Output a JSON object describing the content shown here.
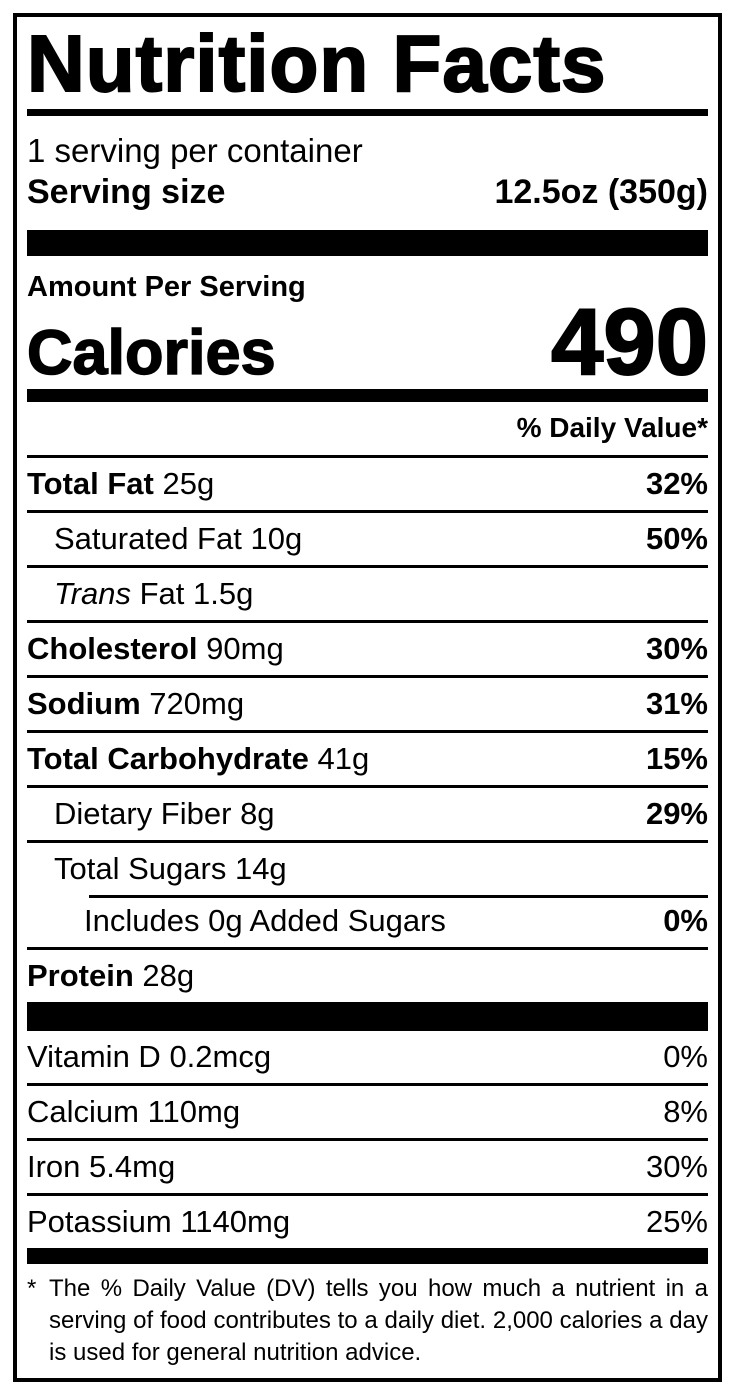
{
  "nutrition": {
    "title": "Nutrition Facts",
    "servings_per_container": "1 serving per container",
    "serving_size": {
      "label": "Serving size",
      "value": "12.5oz (350g)"
    },
    "amount_per_serving": "Amount Per Serving",
    "calories": {
      "label": "Calories",
      "value": "490"
    },
    "daily_value_header": "% Daily Value*",
    "nutrients": [
      {
        "name": "Total Fat",
        "amount": "25g",
        "dv": "32%"
      },
      {
        "name": "Saturated Fat",
        "amount": "10g",
        "dv": "50%"
      },
      {
        "name": "Trans",
        "amount": "Fat 1.5g",
        "dv": ""
      },
      {
        "name": "Cholesterol",
        "amount": "90mg",
        "dv": "30%"
      },
      {
        "name": "Sodium",
        "amount": "720mg",
        "dv": "31%"
      },
      {
        "name": "Total Carbohydrate",
        "amount": "41g",
        "dv": "15%"
      },
      {
        "name": "Dietary Fiber",
        "amount": "8g",
        "dv": "29%"
      },
      {
        "name": "Total Sugars",
        "amount": "14g",
        "dv": ""
      },
      {
        "name": "Includes 0g Added Sugars",
        "amount": "",
        "dv": "0%"
      },
      {
        "name": "Protein",
        "amount": "28g",
        "dv": ""
      }
    ],
    "vitamins": [
      {
        "name": "Vitamin D",
        "amount": "0.2mcg",
        "dv": "0%"
      },
      {
        "name": "Calcium",
        "amount": "110mg",
        "dv": "8%"
      },
      {
        "name": "Iron",
        "amount": "5.4mg",
        "dv": "30%"
      },
      {
        "name": "Potassium",
        "amount": "1140mg",
        "dv": "25%"
      }
    ],
    "footnote": {
      "marker": "*",
      "text": "The % Daily Value (DV) tells you how much a nutrient in a serving of food contributes to a daily diet. 2,000 calories a day is used for general nutrition advice."
    },
    "colors": {
      "ink": "#000000",
      "background": "#ffffff"
    }
  }
}
